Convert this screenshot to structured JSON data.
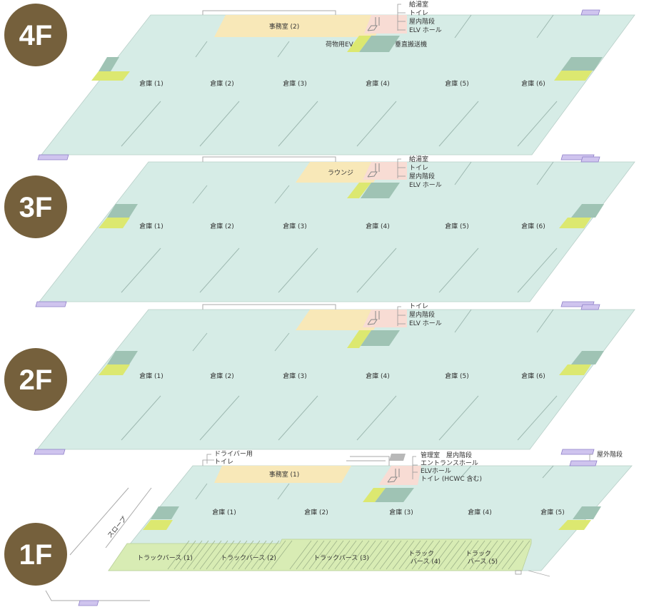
{
  "colors": {
    "floor": "#d6ece6",
    "office": "#f8e8b8",
    "service": "#f8dcd4",
    "elv": "#9fc3b4",
    "lift": "#dce870",
    "stairs": "#cfc4ee",
    "truck": "#d8ecb4",
    "badge": "#75603c",
    "line": "#b8cfc8"
  },
  "floors": [
    {
      "badge": "4F",
      "office": "事務室 (2)",
      "warehouses": [
        "倉庫 (1)",
        "倉庫 (2)",
        "倉庫 (3)",
        "倉庫 (4)",
        "倉庫 (5)",
        "倉庫 (6)"
      ],
      "service_labels": [
        "給湯室",
        "トイレ",
        "屋内階段",
        "ELV ホール"
      ],
      "cargo_ev": "荷物用EV",
      "vertical_conveyor": "垂直搬送機"
    },
    {
      "badge": "3F",
      "office": "ラウンジ",
      "warehouses": [
        "倉庫 (1)",
        "倉庫 (2)",
        "倉庫 (3)",
        "倉庫 (4)",
        "倉庫 (5)",
        "倉庫 (6)"
      ],
      "service_labels": [
        "給湯室",
        "トイレ",
        "屋内階段",
        "ELV ホール"
      ]
    },
    {
      "badge": "2F",
      "warehouses": [
        "倉庫 (1)",
        "倉庫 (2)",
        "倉庫 (3)",
        "倉庫 (4)",
        "倉庫 (5)",
        "倉庫 (6)"
      ],
      "service_labels": [
        "トイレ",
        "屋内階段",
        "ELV ホール"
      ]
    },
    {
      "badge": "1F",
      "office": "事務室 (1)",
      "warehouses": [
        "倉庫 (1)",
        "倉庫 (2)",
        "倉庫 (3)",
        "倉庫 (4)",
        "倉庫 (5)"
      ],
      "service_labels": [
        "管理室　屋内階段",
        "エントランスホール",
        "ELVホール",
        "トイレ (HCWC 含む)"
      ],
      "driver_labels": [
        "ドライバー用",
        "トイレ"
      ],
      "outdoor_stairs": "屋外階段",
      "slope": "スロープ",
      "truck_berths": [
        [
          "トラックバース (1)"
        ],
        [
          "トラックバース (2)"
        ],
        [
          "トラックバース (3)"
        ],
        [
          "トラック",
          "バース (4)"
        ],
        [
          "トラック",
          "バース (5)"
        ]
      ]
    }
  ]
}
